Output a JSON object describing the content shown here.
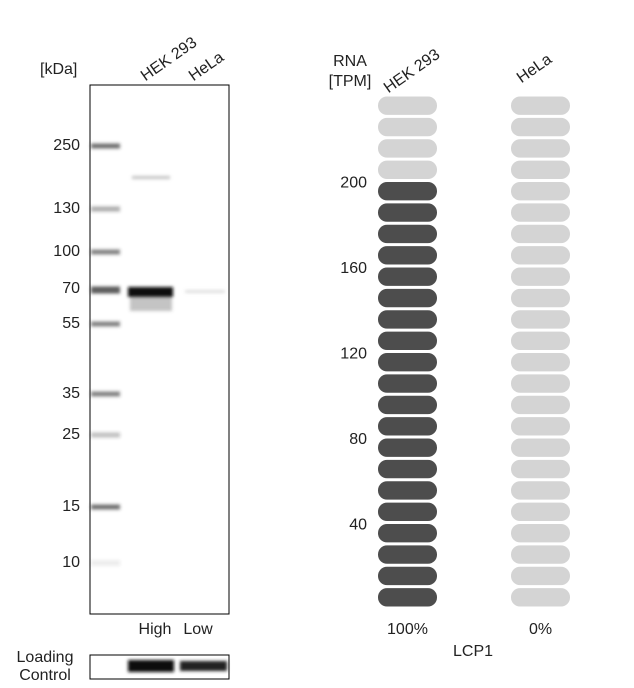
{
  "blot": {
    "unit_label": "[kDa]",
    "lanes": [
      "HEK 293",
      "HeLa"
    ],
    "markers": [
      "250",
      "130",
      "100",
      "70",
      "55",
      "35",
      "25",
      "15",
      "10"
    ],
    "levels": [
      "High",
      "Low"
    ],
    "loading_control": [
      "Loading",
      "Control"
    ]
  },
  "rna": {
    "title": [
      "RNA",
      "[TPM]"
    ],
    "gene": "LCP1",
    "ylim": [
      0,
      240
    ],
    "yticks": [
      40,
      80,
      120,
      160,
      200
    ],
    "series": [
      {
        "name": "HEK 293",
        "value": 200,
        "percent": "100%",
        "color": "#4d4d4d"
      },
      {
        "name": "HeLa",
        "value": 0,
        "percent": "0%",
        "color": "#4d4d4d"
      }
    ],
    "empty_color": "#d4d4d4"
  }
}
